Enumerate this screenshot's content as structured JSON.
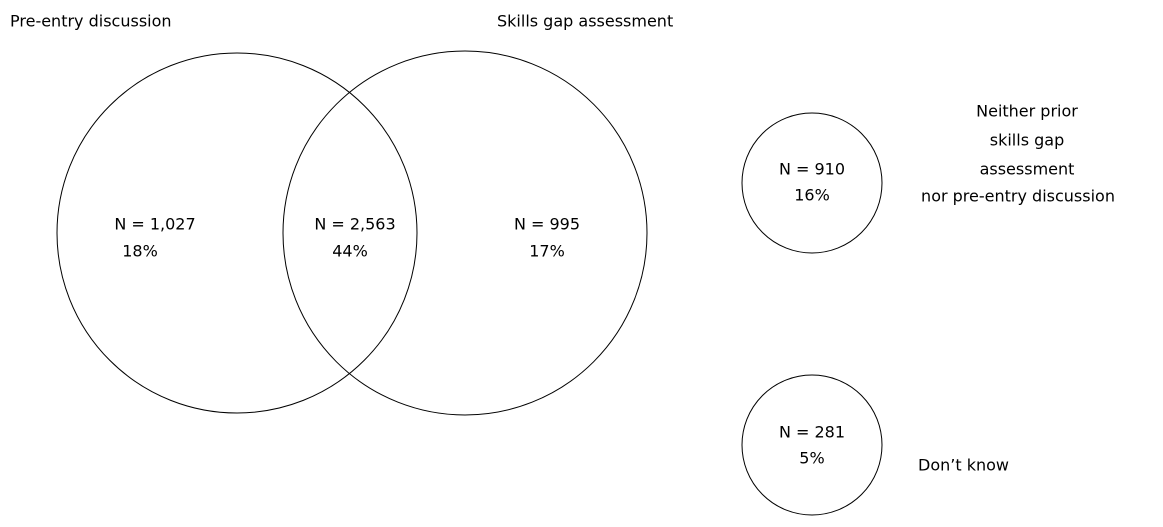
{
  "sets": [
    {
      "label": "Pre-entry discussion"
    },
    {
      "label": "Skills gap assessment"
    }
  ],
  "regions": [
    {
      "n": "N = 1,027",
      "percent": "18%"
    },
    {
      "n": "N = 2,563",
      "percent": "44%"
    },
    {
      "n": "N = 995",
      "percent": "17%"
    }
  ],
  "outside": [
    {
      "n": "N = 910",
      "percent": "16%",
      "label": [
        "Neither prior",
        "skills gap",
        "assessment",
        "nor pre-entry discussion"
      ]
    },
    {
      "n": "N = 281",
      "percent": "5%",
      "label": [
        "Don’t know"
      ]
    }
  ]
}
